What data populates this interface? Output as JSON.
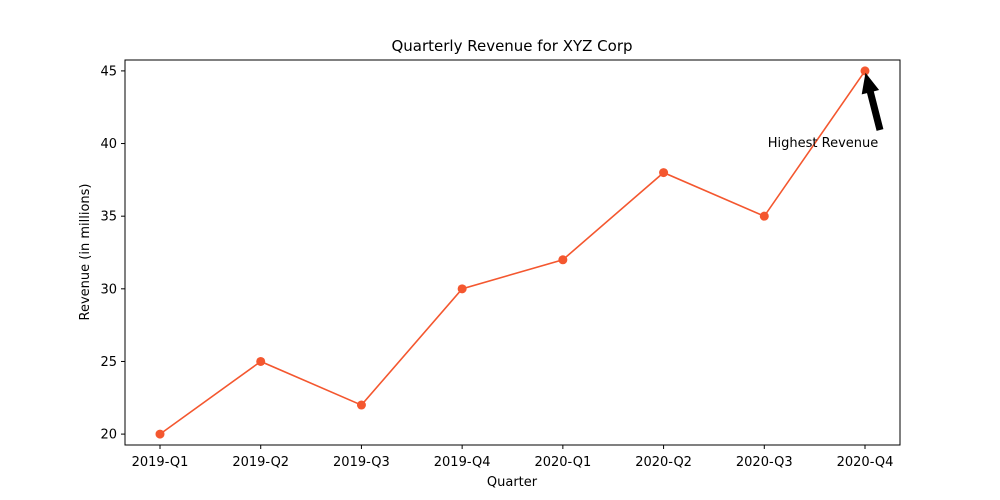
{
  "chart_data": {
    "type": "line",
    "title": "Quarterly Revenue for XYZ Corp",
    "xlabel": "Quarter",
    "ylabel": "Revenue (in millions)",
    "categories": [
      "2019-Q1",
      "2019-Q2",
      "2019-Q3",
      "2019-Q4",
      "2020-Q1",
      "2020-Q2",
      "2020-Q3",
      "2020-Q4"
    ],
    "series": [
      {
        "values": [
          20,
          25,
          22,
          30,
          32,
          38,
          35,
          45
        ],
        "color": "#f4572f",
        "marker": "circle"
      }
    ],
    "ylim": [
      19.25,
      45.75
    ],
    "yticks": [
      20,
      25,
      30,
      35,
      40,
      45
    ],
    "grid": false,
    "annotation": {
      "text": "Highest Revenue",
      "category": "2020-Q4",
      "value": 45
    }
  }
}
